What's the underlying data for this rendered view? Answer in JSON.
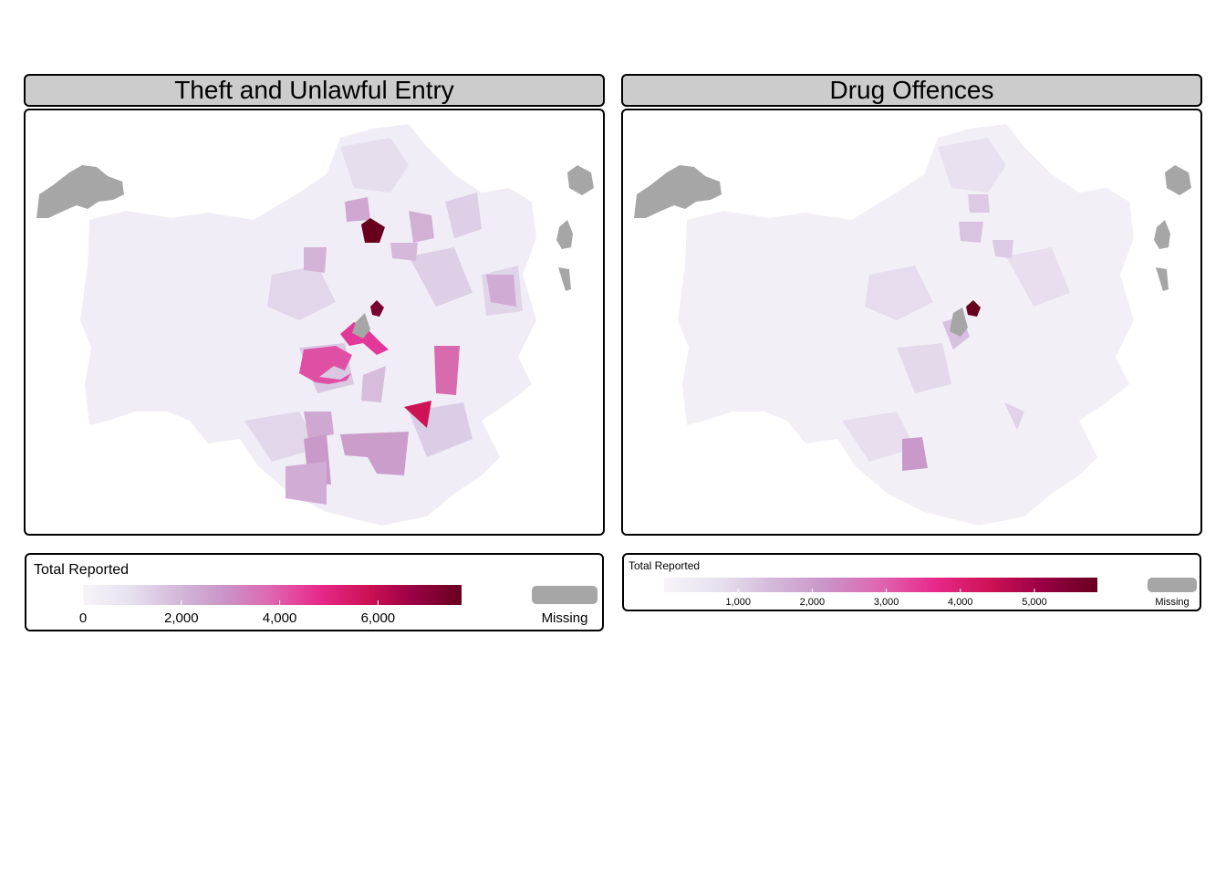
{
  "panels": [
    {
      "title": "Theft and Unlawful Entry",
      "legend": {
        "title": "Total Reported",
        "max": 7700,
        "ticks": [
          {
            "value": 0,
            "label": "0"
          },
          {
            "value": 2000,
            "label": "2,000"
          },
          {
            "value": 4000,
            "label": "4,000"
          },
          {
            "value": 6000,
            "label": "6,000"
          }
        ],
        "missing_label": "Missing"
      }
    },
    {
      "title": "Drug Offences",
      "legend": {
        "title": "Total Reported",
        "max": 5850,
        "ticks": [
          {
            "value": 1000,
            "label": "1,000"
          },
          {
            "value": 2000,
            "label": "2,000"
          },
          {
            "value": 3000,
            "label": "3,000"
          },
          {
            "value": 4000,
            "label": "4,000"
          },
          {
            "value": 5000,
            "label": "5,000"
          }
        ],
        "missing_label": "Missing"
      }
    }
  ],
  "colors": {
    "ramp": [
      "#f7f4f9",
      "#e7e1ef",
      "#d4b9da",
      "#c994c7",
      "#df65b0",
      "#e7298a",
      "#ce1256",
      "#980043",
      "#67001f"
    ],
    "missing": "#a6a6a6"
  }
}
